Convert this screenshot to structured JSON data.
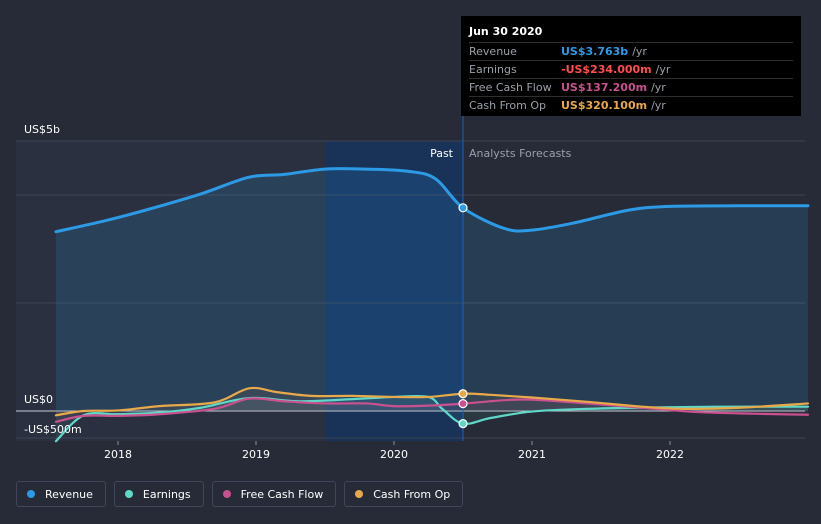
{
  "tooltip": {
    "date": "Jun 30 2020",
    "rows": [
      {
        "label": "Revenue",
        "value": "US$3.763b",
        "unit": "/yr",
        "color": "#2d9ae6"
      },
      {
        "label": "Earnings",
        "value": "-US$234.000m",
        "unit": "/yr",
        "color": "#ff4d4d"
      },
      {
        "label": "Free Cash Flow",
        "value": "US$137.200m",
        "unit": "/yr",
        "color": "#c9518f"
      },
      {
        "label": "Cash From Op",
        "value": "US$320.100m",
        "unit": "/yr",
        "color": "#e8a94a"
      }
    ]
  },
  "labels": {
    "past": "Past",
    "forecast": "Analysts Forecasts",
    "y_top": "US$5b",
    "y_zero": "US$0",
    "y_bottom": "-US$500m"
  },
  "legend": [
    {
      "label": "Revenue",
      "color": "#2d9ae6"
    },
    {
      "label": "Earnings",
      "color": "#5fd8c8"
    },
    {
      "label": "Free Cash Flow",
      "color": "#c9518f"
    },
    {
      "label": "Cash From Op",
      "color": "#e8a94a"
    }
  ],
  "chart_data": {
    "type": "line",
    "x_ticks": [
      "2018",
      "2019",
      "2020",
      "2021",
      "2022"
    ],
    "ylim": [
      -500,
      5000
    ],
    "y_unit": "US$m",
    "divider_date": 2020.5,
    "highlight_range": [
      2019.5,
      2020.5
    ],
    "legend_position": "bottom",
    "series": [
      {
        "name": "Revenue",
        "color": "#2d9ae6",
        "fill": true,
        "points": [
          [
            2017.55,
            3320
          ],
          [
            2017.9,
            3520
          ],
          [
            2018.2,
            3720
          ],
          [
            2018.6,
            4020
          ],
          [
            2018.95,
            4330
          ],
          [
            2019.2,
            4380
          ],
          [
            2019.5,
            4480
          ],
          [
            2019.8,
            4480
          ],
          [
            2020.1,
            4440
          ],
          [
            2020.3,
            4300
          ],
          [
            2020.5,
            3763
          ],
          [
            2020.8,
            3380
          ],
          [
            2021.0,
            3350
          ],
          [
            2021.3,
            3480
          ],
          [
            2021.7,
            3720
          ],
          [
            2022.0,
            3790
          ],
          [
            2022.5,
            3800
          ],
          [
            2023.0,
            3800
          ]
        ]
      },
      {
        "name": "Earnings",
        "color": "#5fd8c8",
        "points": [
          [
            2017.55,
            -560
          ],
          [
            2017.75,
            -80
          ],
          [
            2018.0,
            -60
          ],
          [
            2018.3,
            -30
          ],
          [
            2018.6,
            60
          ],
          [
            2018.95,
            240
          ],
          [
            2019.3,
            180
          ],
          [
            2019.7,
            220
          ],
          [
            2020.0,
            260
          ],
          [
            2020.25,
            260
          ],
          [
            2020.35,
            40
          ],
          [
            2020.5,
            -234
          ],
          [
            2020.7,
            -130
          ],
          [
            2021.0,
            -10
          ],
          [
            2021.4,
            40
          ],
          [
            2022.0,
            70
          ],
          [
            2022.5,
            80
          ],
          [
            2023.0,
            80
          ]
        ]
      },
      {
        "name": "Free Cash Flow",
        "color": "#c9518f",
        "points": [
          [
            2017.55,
            -200
          ],
          [
            2017.75,
            -90
          ],
          [
            2018.0,
            -90
          ],
          [
            2018.3,
            -60
          ],
          [
            2018.7,
            40
          ],
          [
            2018.95,
            230
          ],
          [
            2019.2,
            180
          ],
          [
            2019.5,
            140
          ],
          [
            2019.8,
            140
          ],
          [
            2020.0,
            90
          ],
          [
            2020.25,
            100
          ],
          [
            2020.5,
            137
          ],
          [
            2020.8,
            200
          ],
          [
            2021.0,
            210
          ],
          [
            2021.4,
            140
          ],
          [
            2021.8,
            60
          ],
          [
            2022.2,
            -20
          ],
          [
            2022.6,
            -50
          ],
          [
            2023.0,
            -70
          ]
        ]
      },
      {
        "name": "Cash From Op",
        "color": "#e8a94a",
        "points": [
          [
            2017.55,
            -80
          ],
          [
            2017.75,
            0
          ],
          [
            2018.0,
            10
          ],
          [
            2018.3,
            90
          ],
          [
            2018.7,
            160
          ],
          [
            2018.95,
            420
          ],
          [
            2019.15,
            350
          ],
          [
            2019.4,
            280
          ],
          [
            2019.7,
            280
          ],
          [
            2020.0,
            260
          ],
          [
            2020.25,
            260
          ],
          [
            2020.5,
            320
          ],
          [
            2020.7,
            300
          ],
          [
            2021.0,
            250
          ],
          [
            2021.4,
            170
          ],
          [
            2021.8,
            80
          ],
          [
            2022.1,
            40
          ],
          [
            2022.5,
            60
          ],
          [
            2023.0,
            140
          ]
        ]
      }
    ]
  }
}
